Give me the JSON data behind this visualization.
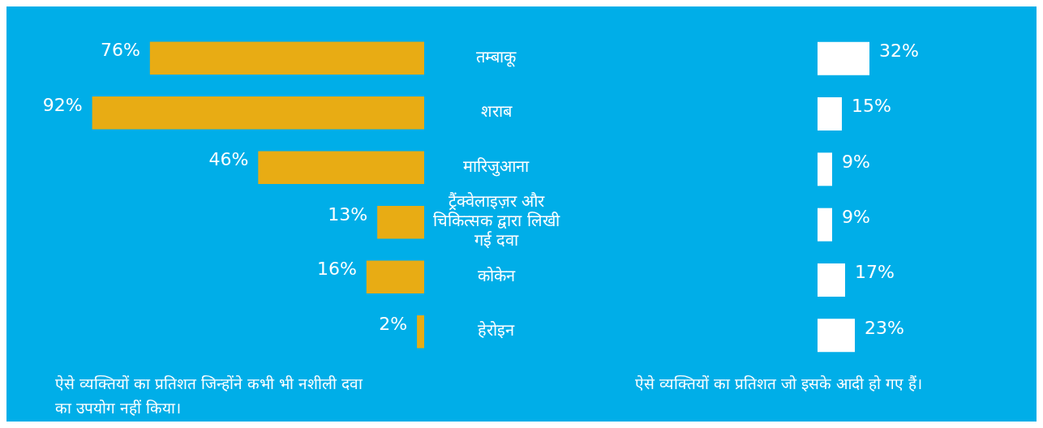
{
  "chart_data": [
    {
      "type": "bar",
      "orientation": "horizontal",
      "categories": [
        "तम्बाकू",
        "शराब",
        "मारिजुआना",
        "ट्रैंक्वेलाइज़र और चिकित्सक द्वारा लिखी गई दवा",
        "कोकेन",
        "हेरोइन"
      ],
      "values": [
        76,
        92,
        46,
        13,
        16,
        2
      ],
      "value_labels": [
        "76%",
        "92%",
        "46%",
        "13%",
        "16%",
        "2%"
      ],
      "color": "#e8ac14",
      "tick_labels": "y",
      "annotations": [
        "ऐसे व्यक्तियों का प्रतिशत जिन्होंने कभी भी नशीली दवा का उपयोग नहीं किया।"
      ]
    },
    {
      "type": "bar",
      "orientation": "horizontal",
      "categories": [
        null,
        null,
        null,
        null,
        null,
        null
      ],
      "values": [
        32,
        15,
        9,
        9,
        17,
        23
      ],
      "value_labels": [
        "32%",
        "15%",
        "9%",
        "9%",
        "17%",
        "23%"
      ],
      "color": "#ffffff",
      "tick_labels": false,
      "annotations": [
        "ऐसे व्यक्तियों का प्रतिशत जो इसके आदी हो गए हैं।"
      ]
    }
  ]
}
